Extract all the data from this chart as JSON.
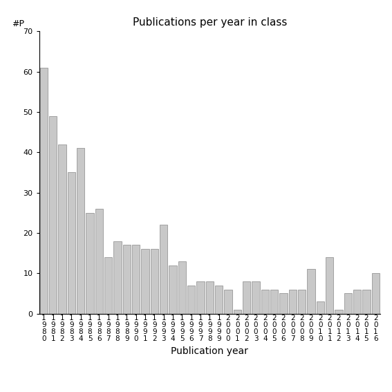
{
  "title": "Publications per year in class",
  "xlabel": "Publication year",
  "ylabel": "#P",
  "years": [
    "1980",
    "1981",
    "1982",
    "1983",
    "1984",
    "1985",
    "1986",
    "1987",
    "1988",
    "1989",
    "1990",
    "1991",
    "1992",
    "1993",
    "1994",
    "1995",
    "1996",
    "1997",
    "1998",
    "1999",
    "2000",
    "2001",
    "2002",
    "2003",
    "2004",
    "2005",
    "2006",
    "2007",
    "2008",
    "2009",
    "2010",
    "2011",
    "2012",
    "2013",
    "2014",
    "2015",
    "2016"
  ],
  "values": [
    61,
    49,
    42,
    35,
    41,
    25,
    26,
    14,
    18,
    17,
    17,
    16,
    16,
    22,
    12,
    13,
    7,
    8,
    8,
    7,
    6,
    1,
    8,
    8,
    6,
    6,
    5,
    6,
    6,
    11,
    3,
    14,
    1,
    5,
    6,
    6,
    10
  ],
  "bar_color": "#c8c8c8",
  "bar_edge_color": "#888888",
  "ylim": [
    0,
    70
  ],
  "yticks": [
    0,
    10,
    20,
    30,
    40,
    50,
    60,
    70
  ],
  "bg_color": "#ffffff",
  "title_fontsize": 11,
  "xlabel_fontsize": 10,
  "tick_fontsize": 8
}
